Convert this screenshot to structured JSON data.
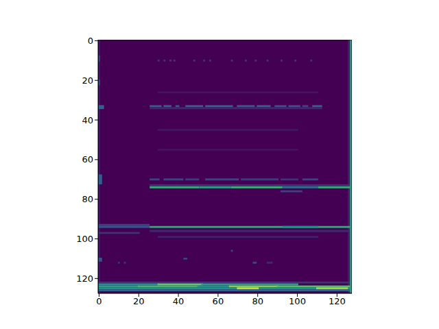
{
  "chart_data": {
    "type": "heatmap",
    "color": "viridis",
    "value_range": [
      0,
      1
    ],
    "background": 0,
    "xlim": [
      -0.5,
      127.5
    ],
    "ylim": [
      127.5,
      -0.5
    ],
    "xticks": [
      0,
      20,
      40,
      60,
      80,
      100,
      120
    ],
    "yticks": [
      0,
      20,
      40,
      60,
      80,
      100,
      120
    ],
    "cells": [
      [
        0,
        0,
        0,
        127,
        0.08
      ],
      [
        126,
        126,
        0,
        127,
        0.1
      ],
      [
        0,
        0,
        8,
        10,
        0.2
      ],
      [
        0,
        0,
        20,
        22,
        0.2
      ],
      [
        0,
        1,
        68,
        72,
        0.3
      ],
      [
        0,
        1,
        110,
        111,
        0.25
      ],
      [
        30,
        30,
        10,
        10,
        0.15
      ],
      [
        33,
        33,
        10,
        10,
        0.15
      ],
      [
        36,
        36,
        10,
        10,
        0.15
      ],
      [
        38,
        38,
        10,
        10,
        0.15
      ],
      [
        48,
        48,
        10,
        10,
        0.15
      ],
      [
        53,
        53,
        10,
        10,
        0.15
      ],
      [
        56,
        56,
        10,
        10,
        0.15
      ],
      [
        67,
        67,
        10,
        10,
        0.15
      ],
      [
        74,
        74,
        10,
        10,
        0.15
      ],
      [
        79,
        79,
        10,
        10,
        0.15
      ],
      [
        85,
        85,
        10,
        10,
        0.15
      ],
      [
        92,
        92,
        10,
        10,
        0.15
      ],
      [
        99,
        99,
        10,
        10,
        0.15
      ],
      [
        107,
        107,
        10,
        10,
        0.15
      ],
      [
        30,
        110,
        26,
        26,
        0.06
      ],
      [
        0,
        2,
        33,
        34,
        0.3
      ],
      [
        26,
        31,
        33,
        33,
        0.3
      ],
      [
        33,
        36,
        33,
        33,
        0.3
      ],
      [
        39,
        40,
        33,
        33,
        0.28
      ],
      [
        44,
        52,
        33,
        33,
        0.3
      ],
      [
        54,
        67,
        33,
        33,
        0.32
      ],
      [
        70,
        78,
        33,
        33,
        0.28
      ],
      [
        80,
        86,
        33,
        33,
        0.3
      ],
      [
        89,
        94,
        33,
        33,
        0.25
      ],
      [
        96,
        101,
        33,
        33,
        0.25
      ],
      [
        103,
        105,
        33,
        33,
        0.2
      ],
      [
        108,
        112,
        33,
        33,
        0.3
      ],
      [
        26,
        112,
        34,
        34,
        0.12
      ],
      [
        30,
        100,
        45,
        45,
        0.06
      ],
      [
        30,
        100,
        55,
        55,
        0.05
      ],
      [
        26,
        30,
        70,
        70,
        0.2
      ],
      [
        33,
        42,
        70,
        70,
        0.2
      ],
      [
        44,
        50,
        70,
        70,
        0.18
      ],
      [
        54,
        70,
        70,
        70,
        0.2
      ],
      [
        72,
        90,
        70,
        70,
        0.18
      ],
      [
        92,
        100,
        70,
        70,
        0.15
      ],
      [
        103,
        110,
        70,
        70,
        0.2
      ],
      [
        26,
        127,
        73,
        73,
        0.15
      ],
      [
        26,
        50,
        74,
        74,
        0.6
      ],
      [
        51,
        66,
        74,
        74,
        0.55
      ],
      [
        67,
        92,
        74,
        74,
        0.62
      ],
      [
        93,
        110,
        74,
        74,
        0.35
      ],
      [
        111,
        127,
        74,
        74,
        0.6
      ],
      [
        92,
        102,
        76,
        76,
        0.2
      ],
      [
        0,
        25,
        93,
        93,
        0.2
      ],
      [
        0,
        25,
        94,
        94,
        0.25
      ],
      [
        26,
        127,
        94,
        94,
        0.6
      ],
      [
        93,
        110,
        94,
        94,
        0.5
      ],
      [
        26,
        127,
        96,
        96,
        0.12
      ],
      [
        0,
        20,
        97,
        97,
        0.15
      ],
      [
        30,
        110,
        99,
        99,
        0.1
      ],
      [
        10,
        10,
        112,
        112,
        0.15
      ],
      [
        13,
        13,
        112,
        112,
        0.15
      ],
      [
        43,
        44,
        110,
        110,
        0.2
      ],
      [
        67,
        67,
        106,
        106,
        0.2
      ],
      [
        78,
        79,
        112,
        112,
        0.2
      ],
      [
        85,
        87,
        112,
        112,
        0.12
      ],
      [
        0,
        127,
        122,
        122,
        0.15
      ],
      [
        0,
        30,
        123,
        123,
        0.5
      ],
      [
        30,
        52,
        123,
        123,
        0.75
      ],
      [
        52,
        100,
        123,
        123,
        0.55
      ],
      [
        0,
        20,
        124,
        124,
        0.55
      ],
      [
        20,
        50,
        124,
        124,
        0.65
      ],
      [
        50,
        66,
        124,
        124,
        0.5
      ],
      [
        66,
        90,
        124,
        124,
        0.8
      ],
      [
        90,
        127,
        124,
        124,
        0.7
      ],
      [
        0,
        127,
        125,
        125,
        0.5
      ],
      [
        70,
        80,
        125,
        125,
        0.9
      ],
      [
        110,
        125,
        125,
        125,
        0.85
      ],
      [
        0,
        127,
        126,
        126,
        0.3
      ],
      [
        127,
        127,
        0,
        127,
        0.55
      ]
    ]
  }
}
